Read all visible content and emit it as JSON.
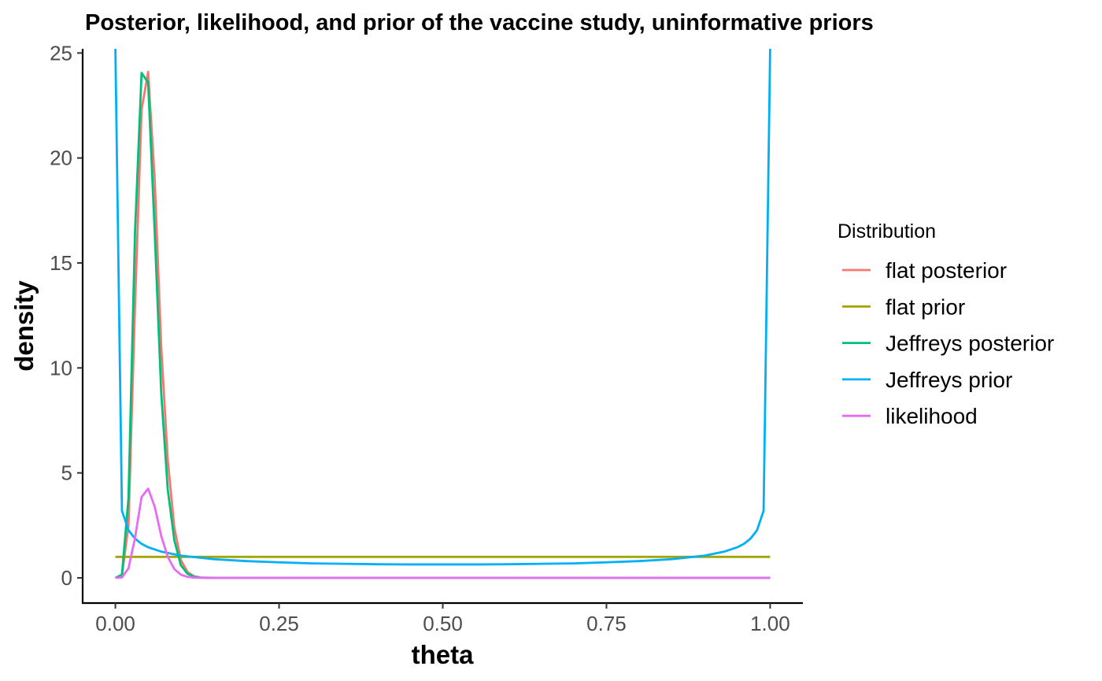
{
  "chart_data": {
    "type": "line",
    "title": "Posterior, likelihood, and prior of the vaccine study, uninformative priors",
    "xlabel": "theta",
    "ylabel": "density",
    "xlim": [
      -0.05,
      1.05
    ],
    "ylim": [
      -1.2,
      25.2
    ],
    "x_ticks": [
      "0.00",
      "0.25",
      "0.50",
      "0.75",
      "1.00"
    ],
    "x_tick_values": [
      0,
      0.25,
      0.5,
      0.75,
      1.0
    ],
    "y_ticks": [
      "0",
      "5",
      "10",
      "15",
      "20",
      "25"
    ],
    "y_tick_values": [
      0,
      5,
      10,
      15,
      20,
      25
    ],
    "grid": false,
    "legend": {
      "title": "Distribution",
      "position": "right"
    },
    "series": [
      {
        "name": "flat posterior",
        "color": "#F8766D",
        "points": [
          [
            0,
            0
          ],
          [
            0.01,
            0.1
          ],
          [
            0.02,
            2.5
          ],
          [
            0.03,
            13
          ],
          [
            0.04,
            22.3
          ],
          [
            0.05,
            24.1
          ],
          [
            0.06,
            19
          ],
          [
            0.07,
            11
          ],
          [
            0.08,
            5.6
          ],
          [
            0.09,
            2.4
          ],
          [
            0.1,
            0.85
          ],
          [
            0.11,
            0.28
          ],
          [
            0.12,
            0.08
          ],
          [
            0.13,
            0.02
          ],
          [
            0.15,
            0
          ],
          [
            0.2,
            0
          ],
          [
            0.3,
            0
          ],
          [
            0.4,
            0
          ],
          [
            0.5,
            0
          ],
          [
            0.6,
            0
          ],
          [
            0.7,
            0
          ],
          [
            0.8,
            0
          ],
          [
            0.9,
            0
          ],
          [
            1,
            0
          ]
        ]
      },
      {
        "name": "flat prior",
        "color": "#A3A500",
        "points": [
          [
            0,
            1
          ],
          [
            1,
            1
          ]
        ]
      },
      {
        "name": "Jeffreys posterior",
        "color": "#00BF7D",
        "points": [
          [
            0,
            0
          ],
          [
            0.01,
            0.15
          ],
          [
            0.02,
            3.8
          ],
          [
            0.03,
            16.5
          ],
          [
            0.04,
            24.05
          ],
          [
            0.05,
            23.6
          ],
          [
            0.06,
            16.5
          ],
          [
            0.07,
            8.8
          ],
          [
            0.08,
            4.2
          ],
          [
            0.09,
            1.8
          ],
          [
            0.1,
            0.6
          ],
          [
            0.11,
            0.2
          ],
          [
            0.12,
            0.05
          ],
          [
            0.13,
            0.01
          ],
          [
            0.15,
            0
          ],
          [
            0.2,
            0
          ],
          [
            0.3,
            0
          ],
          [
            0.4,
            0
          ],
          [
            0.5,
            0
          ],
          [
            0.6,
            0
          ],
          [
            0.7,
            0
          ],
          [
            0.8,
            0
          ],
          [
            0.9,
            0
          ],
          [
            1,
            0
          ]
        ]
      },
      {
        "name": "Jeffreys prior",
        "color": "#00B0F6",
        "points": [
          [
            0,
            25.2
          ],
          [
            0.01,
            3.2
          ],
          [
            0.02,
            2.27
          ],
          [
            0.03,
            1.87
          ],
          [
            0.04,
            1.62
          ],
          [
            0.05,
            1.46
          ],
          [
            0.07,
            1.25
          ],
          [
            0.1,
            1.06
          ],
          [
            0.15,
            0.89
          ],
          [
            0.2,
            0.8
          ],
          [
            0.25,
            0.74
          ],
          [
            0.3,
            0.69
          ],
          [
            0.35,
            0.67
          ],
          [
            0.4,
            0.65
          ],
          [
            0.45,
            0.64
          ],
          [
            0.5,
            0.64
          ],
          [
            0.55,
            0.64
          ],
          [
            0.6,
            0.65
          ],
          [
            0.65,
            0.67
          ],
          [
            0.7,
            0.69
          ],
          [
            0.75,
            0.74
          ],
          [
            0.8,
            0.8
          ],
          [
            0.85,
            0.89
          ],
          [
            0.9,
            1.06
          ],
          [
            0.93,
            1.25
          ],
          [
            0.95,
            1.46
          ],
          [
            0.96,
            1.62
          ],
          [
            0.97,
            1.87
          ],
          [
            0.98,
            2.27
          ],
          [
            0.99,
            3.2
          ],
          [
            1.0,
            25.2
          ]
        ]
      },
      {
        "name": "likelihood",
        "color": "#E76BF3",
        "points": [
          [
            0,
            0
          ],
          [
            0.01,
            0.02
          ],
          [
            0.02,
            0.45
          ],
          [
            0.03,
            1.9
          ],
          [
            0.04,
            3.85
          ],
          [
            0.05,
            4.25
          ],
          [
            0.06,
            3.4
          ],
          [
            0.07,
            2.0
          ],
          [
            0.08,
            1.0
          ],
          [
            0.09,
            0.42
          ],
          [
            0.1,
            0.15
          ],
          [
            0.11,
            0.05
          ],
          [
            0.12,
            0.01
          ],
          [
            0.14,
            0
          ],
          [
            0.2,
            0
          ],
          [
            0.3,
            0
          ],
          [
            0.4,
            0
          ],
          [
            0.5,
            0
          ],
          [
            0.6,
            0
          ],
          [
            0.7,
            0
          ],
          [
            0.8,
            0
          ],
          [
            0.9,
            0
          ],
          [
            1,
            0
          ]
        ]
      }
    ]
  }
}
